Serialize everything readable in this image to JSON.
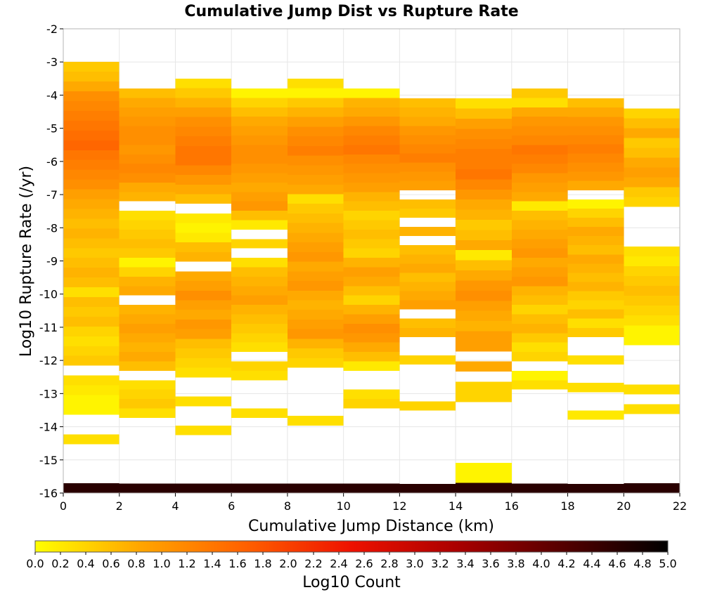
{
  "chart_data": {
    "type": "heatmap",
    "title": "Cumulative Jump Dist vs Rupture Rate",
    "xlabel": "Cumulative Jump Distance (km)",
    "ylabel": "Log10 Rupture Rate (/yr)",
    "xlim": [
      0,
      22
    ],
    "ylim": [
      -16,
      -2
    ],
    "x_ticks": [
      "0",
      "2",
      "4",
      "6",
      "8",
      "10",
      "12",
      "14",
      "16",
      "18",
      "20",
      "22"
    ],
    "y_ticks": [
      "-2",
      "-3",
      "-4",
      "-5",
      "-6",
      "-7",
      "-8",
      "-9",
      "-10",
      "-11",
      "-12",
      "-13",
      "-14",
      "-15",
      "-16"
    ],
    "grid": true,
    "x_bin_width": 2,
    "y_bin_height": 0.3,
    "colorbar": {
      "label": "Log10 Count",
      "min": 0.0,
      "max": 5.0,
      "ticks": [
        "0.0",
        "0.2",
        "0.4",
        "0.6",
        "0.8",
        "1.0",
        "1.2",
        "1.4",
        "1.6",
        "1.8",
        "2.0",
        "2.2",
        "2.4",
        "2.6",
        "2.8",
        "3.0",
        "3.2",
        "3.4",
        "3.6",
        "3.8",
        "4.0",
        "4.2",
        "4.4",
        "4.6",
        "4.8",
        "5.0"
      ],
      "colormap": [
        "#ffff00",
        "#ffa500",
        "#ff6000",
        "#ee1100",
        "#aa0000",
        "#550000",
        "#000000"
      ]
    },
    "columns": [
      {
        "x_start": 0,
        "y_top": -3.0,
        "y_bottom": -16.0,
        "values": [
          0.5,
          0.6,
          0.8,
          1.1,
          1.2,
          1.3,
          1.4,
          1.5,
          1.6,
          1.4,
          1.3,
          1.2,
          1.1,
          0.9,
          0.8,
          0.7,
          0.6,
          0.7,
          0.6,
          0.5,
          0.6,
          0.7,
          0.6,
          0.3,
          0.6,
          0.5,
          0.6,
          0.4,
          0.3,
          0.4,
          0.5,
          null,
          0.3,
          0.2,
          0.1,
          0.1,
          null,
          null,
          0.3,
          null,
          null,
          null,
          null,
          4.6
        ]
      },
      {
        "x_start": 2,
        "y_top": -3.8,
        "y_bottom": -16.0,
        "values": [
          0.6,
          0.8,
          0.9,
          1.0,
          1.1,
          1.1,
          1.0,
          1.1,
          1.2,
          1.1,
          0.8,
          0.7,
          null,
          0.3,
          0.4,
          0.5,
          0.6,
          0.5,
          0.1,
          0.4,
          0.7,
          0.8,
          null,
          0.7,
          0.8,
          0.9,
          0.8,
          0.7,
          0.8,
          0.6,
          null,
          0.3,
          0.4,
          0.5,
          0.3,
          null,
          null,
          null,
          null,
          null,
          null,
          null,
          4.6
        ]
      },
      {
        "x_start": 4,
        "y_top": -3.5,
        "y_bottom": -16.0,
        "values": [
          0.3,
          0.5,
          0.7,
          0.9,
          1.1,
          1.2,
          1.3,
          1.4,
          1.4,
          1.2,
          1.0,
          0.8,
          0.6,
          null,
          0.2,
          0.1,
          0.2,
          0.6,
          0.7,
          null,
          0.8,
          0.9,
          1.1,
          0.9,
          0.8,
          1.0,
          0.9,
          0.6,
          0.5,
          0.4,
          0.3,
          null,
          null,
          0.3,
          null,
          null,
          0.3,
          null,
          null,
          null,
          null,
          null,
          4.6
        ]
      },
      {
        "x_start": 6,
        "y_top": -3.8,
        "y_bottom": -16.0,
        "values": [
          0.1,
          0.4,
          0.6,
          0.8,
          0.9,
          1.0,
          1.1,
          1.1,
          1.0,
          0.9,
          0.8,
          0.9,
          1.0,
          0.6,
          0.2,
          null,
          0.4,
          null,
          0.3,
          0.6,
          0.7,
          0.8,
          0.9,
          0.7,
          0.6,
          0.5,
          0.4,
          0.3,
          null,
          0.4,
          0.3,
          null,
          null,
          null,
          0.3,
          null,
          null,
          null,
          null,
          null,
          null,
          null,
          4.6
        ]
      },
      {
        "x_start": 8,
        "y_top": -3.5,
        "y_bottom": -16.0,
        "values": [
          0.3,
          0.1,
          0.5,
          0.7,
          0.9,
          1.1,
          1.2,
          1.3,
          1.1,
          1.0,
          0.9,
          0.8,
          0.3,
          0.5,
          0.6,
          0.7,
          0.8,
          0.9,
          1.0,
          0.8,
          0.9,
          1.0,
          0.8,
          0.7,
          0.8,
          0.9,
          1.0,
          0.7,
          0.5,
          0.4,
          null,
          null,
          null,
          null,
          null,
          0.3,
          null,
          null,
          null,
          null,
          null,
          null,
          4.6
        ]
      },
      {
        "x_start": 10,
        "y_top": -3.8,
        "y_bottom": -16.0,
        "values": [
          0.1,
          0.7,
          0.8,
          1.0,
          1.2,
          1.3,
          1.4,
          1.2,
          1.1,
          1.0,
          0.9,
          0.7,
          0.6,
          0.4,
          0.5,
          0.6,
          0.5,
          0.4,
          0.7,
          0.9,
          0.8,
          0.6,
          0.4,
          0.7,
          0.9,
          1.1,
          1.0,
          0.8,
          0.6,
          0.2,
          null,
          null,
          0.3,
          0.4,
          null,
          null,
          null,
          null,
          null,
          null,
          null,
          null,
          4.6
        ]
      },
      {
        "x_start": 12,
        "y_top": -4.1,
        "y_bottom": -16.0,
        "values": [
          0.6,
          0.7,
          0.8,
          1.0,
          1.1,
          1.2,
          1.3,
          1.1,
          1.0,
          0.9,
          null,
          0.6,
          0.5,
          null,
          0.7,
          null,
          0.6,
          0.7,
          0.8,
          0.6,
          0.7,
          0.8,
          0.9,
          null,
          0.6,
          0.7,
          null,
          null,
          0.4,
          null,
          null,
          null,
          null,
          0.4,
          null,
          null,
          null,
          null,
          null,
          null,
          null,
          null,
          4.6
        ]
      },
      {
        "x_start": 14,
        "y_top": -4.1,
        "y_bottom": -16.0,
        "values": [
          0.3,
          0.6,
          0.9,
          1.1,
          1.2,
          1.3,
          1.3,
          1.4,
          1.2,
          1.0,
          0.8,
          0.7,
          0.5,
          0.6,
          0.8,
          0.2,
          0.6,
          0.8,
          1.0,
          1.1,
          0.9,
          0.8,
          0.7,
          0.9,
          0.9,
          null,
          0.8,
          null,
          0.4,
          0.4,
          null,
          null,
          null,
          null,
          null,
          null,
          0.1,
          0.1,
          4.6
        ]
      },
      {
        "x_start": 16,
        "y_top": -3.8,
        "y_bottom": -16.0,
        "values": [
          0.5,
          0.3,
          0.8,
          1.0,
          1.1,
          1.2,
          1.4,
          1.3,
          1.2,
          1.0,
          0.9,
          0.8,
          0.2,
          0.6,
          0.7,
          0.8,
          0.9,
          1.0,
          0.8,
          0.9,
          1.0,
          0.7,
          0.6,
          0.4,
          0.6,
          0.7,
          0.5,
          0.3,
          0.4,
          null,
          0.1,
          0.3,
          null,
          null,
          null,
          null,
          null,
          null,
          null,
          null,
          null,
          null,
          4.6
        ]
      },
      {
        "x_start": 18,
        "y_top": -4.1,
        "y_bottom": -16.0,
        "values": [
          0.6,
          0.8,
          1.0,
          1.1,
          1.2,
          1.3,
          1.2,
          1.1,
          1.0,
          0.8,
          null,
          0.1,
          0.4,
          0.6,
          0.8,
          0.7,
          0.6,
          0.8,
          0.7,
          0.6,
          0.7,
          0.5,
          0.4,
          0.6,
          0.3,
          0.5,
          null,
          null,
          0.3,
          null,
          null,
          0.3,
          null,
          null,
          0.2,
          null,
          null,
          null,
          null,
          null,
          null,
          null,
          4.6
        ]
      },
      {
        "x_start": 20,
        "y_top": -4.4,
        "y_bottom": -16.0,
        "values": [
          0.4,
          0.6,
          0.8,
          0.5,
          0.6,
          0.8,
          0.9,
          0.8,
          0.5,
          0.4,
          null,
          null,
          null,
          null,
          0.3,
          0.2,
          0.4,
          0.5,
          0.6,
          0.5,
          0.4,
          0.3,
          0.1,
          0.1,
          null,
          null,
          null,
          null,
          0.3,
          null,
          0.3,
          null,
          null,
          null,
          null,
          null,
          null,
          null,
          4.6
        ]
      }
    ]
  }
}
